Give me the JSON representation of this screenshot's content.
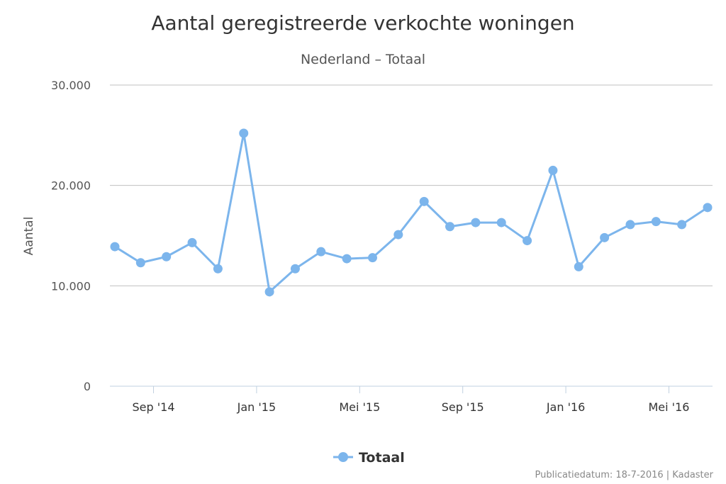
{
  "chart_data": {
    "type": "line",
    "title": "Aantal geregistreerde verkochte woningen",
    "subtitle": "Nederland – Totaal",
    "ylabel": "Aantal",
    "ylim": [
      0,
      30000
    ],
    "yticks": [
      {
        "value": 0,
        "label": "0"
      },
      {
        "value": 10000,
        "label": "10.000"
      },
      {
        "value": 20000,
        "label": "20.000"
      },
      {
        "value": 30000,
        "label": "30.000"
      }
    ],
    "xticks": [
      {
        "date": "2014-09",
        "label": "Sep '14"
      },
      {
        "date": "2015-01",
        "label": "Jan '15"
      },
      {
        "date": "2015-05",
        "label": "Mei '15"
      },
      {
        "date": "2015-09",
        "label": "Sep '15"
      },
      {
        "date": "2016-01",
        "label": "Jan '16"
      },
      {
        "date": "2016-05",
        "label": "Mei '16"
      }
    ],
    "x": [
      "2014-07",
      "2014-08",
      "2014-09",
      "2014-10",
      "2014-11",
      "2014-12",
      "2015-01",
      "2015-02",
      "2015-03",
      "2015-04",
      "2015-05",
      "2015-06",
      "2015-07",
      "2015-08",
      "2015-09",
      "2015-10",
      "2015-11",
      "2015-12",
      "2016-01",
      "2016-02",
      "2016-03",
      "2016-04",
      "2016-05",
      "2016-06"
    ],
    "series": [
      {
        "name": "Totaal",
        "color": "#7cb5ec",
        "values": [
          13900,
          12300,
          12900,
          14300,
          11700,
          25200,
          9400,
          11700,
          13400,
          12700,
          12800,
          15100,
          18400,
          15900,
          16300,
          16300,
          14500,
          21500,
          11900,
          14800,
          16100,
          16400,
          16100,
          17800
        ]
      }
    ],
    "grid": true,
    "legend": "bottom-center",
    "credit": "Publicatiedatum: 18-7-2016 | Kadaster"
  }
}
